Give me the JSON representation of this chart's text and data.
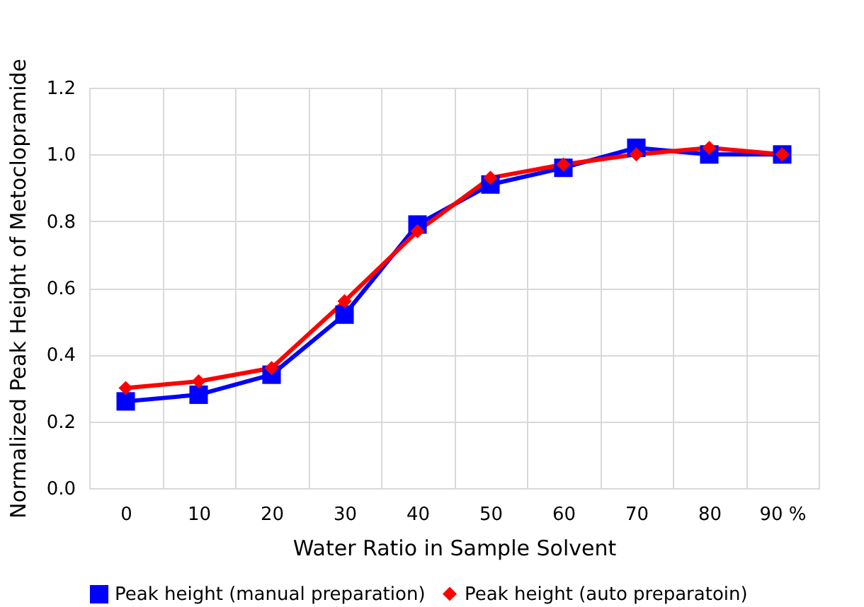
{
  "chart_data": {
    "type": "line",
    "xlabel": "Water Ratio in Sample Solvent",
    "ylabel": "Normalized Peak Height of Metoclopramide",
    "categories": [
      "0",
      "10",
      "20",
      "30",
      "40",
      "50",
      "60",
      "70",
      "80",
      "90 %"
    ],
    "series": [
      {
        "name": "Peak height (manual preparation)",
        "color": "#0000ff",
        "marker": "square",
        "values": [
          0.26,
          0.28,
          0.34,
          0.52,
          0.79,
          0.91,
          0.96,
          1.02,
          1.0,
          1.0
        ]
      },
      {
        "name": "Peak height (auto preparatoin)",
        "color": "#ff0000",
        "marker": "diamond",
        "values": [
          0.3,
          0.32,
          0.36,
          0.56,
          0.77,
          0.93,
          0.97,
          1.0,
          1.02,
          1.0
        ]
      }
    ],
    "ylim": [
      0,
      1.2
    ],
    "yticks": [
      {
        "value": 0,
        "label": "0.0"
      },
      0.2,
      0.4,
      0.6,
      0.8,
      {
        "value": 1,
        "label": "1.0"
      },
      1.2
    ],
    "grid": true,
    "legend": "bottom",
    "line_style": "solid"
  }
}
